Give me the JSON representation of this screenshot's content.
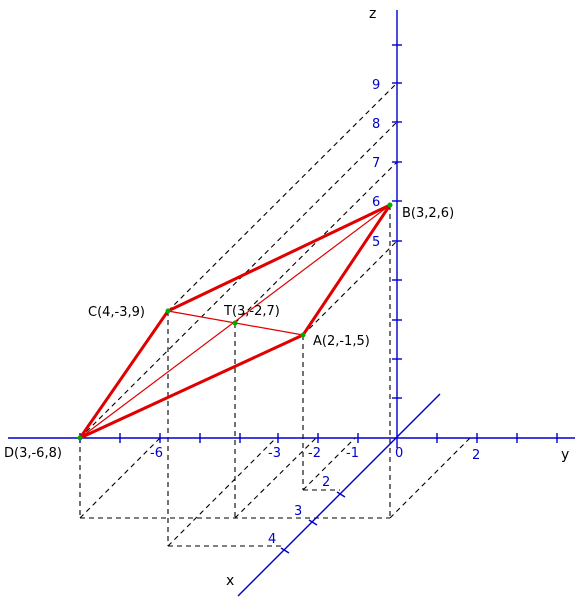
{
  "axes": {
    "color": "#0000cc",
    "y_name": "y",
    "z_name": "z",
    "x_name": "x",
    "y_labels": [
      "-6",
      "-3",
      "-2",
      "-1",
      "0",
      "2"
    ],
    "z_labels": [
      "5",
      "6",
      "7",
      "8",
      "9"
    ],
    "x_labels": [
      "2",
      "3",
      "4"
    ]
  },
  "points": {
    "A": "A(2,-1,5)",
    "B": "B(3,2,6)",
    "C": "C(4,-3,9)",
    "D": "D(3,-6,8)",
    "T": "T(3,-2,7)"
  },
  "colors": {
    "triangle": "#e00000",
    "construction": "#000000",
    "vertex": "#00aa00"
  }
}
